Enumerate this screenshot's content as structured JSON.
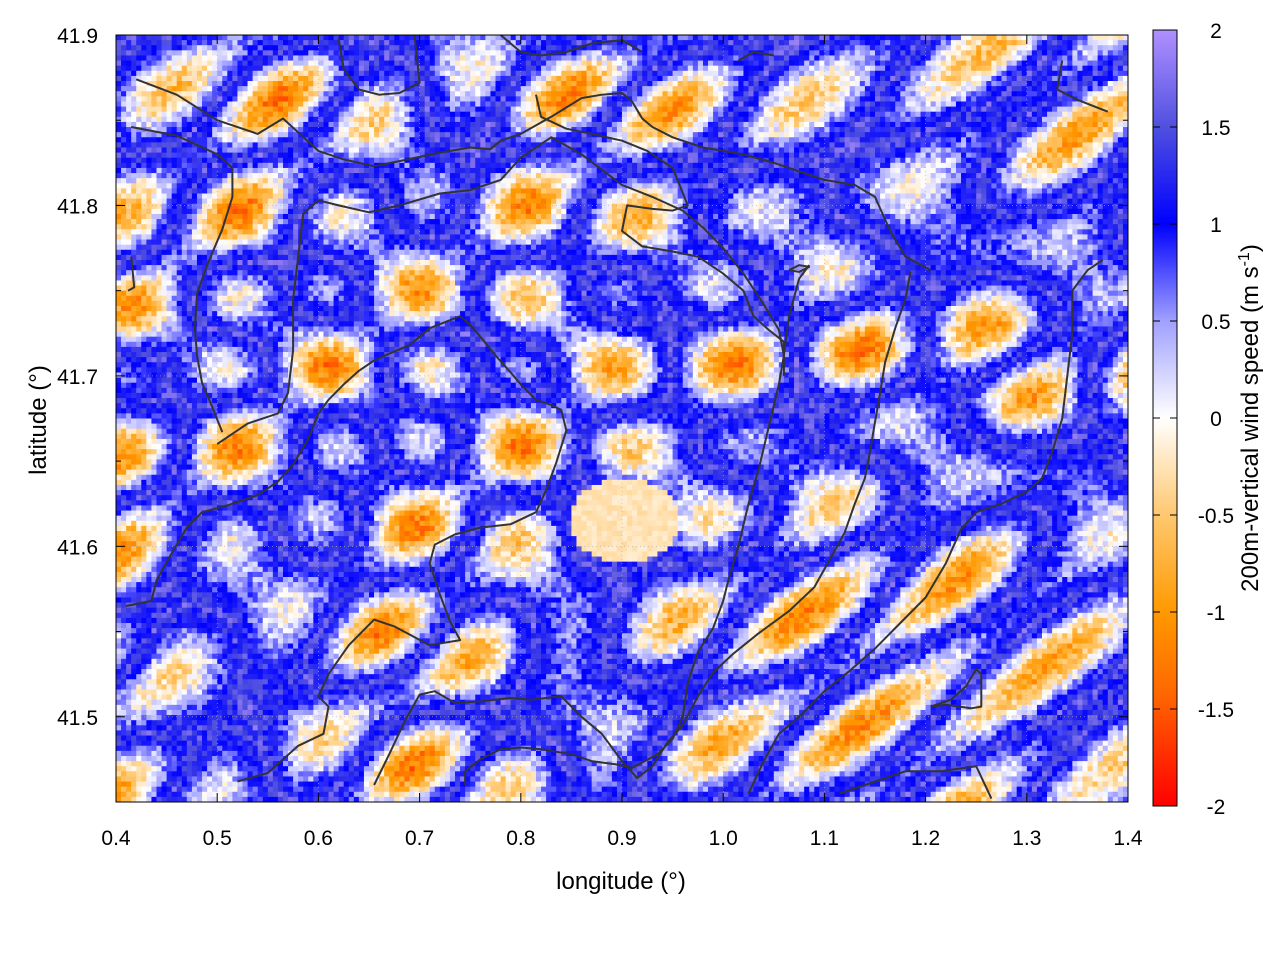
{
  "chart_data": {
    "type": "heatmap",
    "title": "",
    "xlabel": "longitude (°)",
    "ylabel": "latitude (°)",
    "colorbar_label": "200m-vertical wind speed (m s-1)",
    "colorbar_label_main": "200m-vertical wind speed (m s",
    "colorbar_label_sup": "-1",
    "colorbar_label_end": ")",
    "xlim": [
      0.4,
      1.4
    ],
    "ylim": [
      41.45,
      41.9
    ],
    "clim": [
      -2,
      2
    ],
    "x_ticks": [
      0.4,
      0.5,
      0.6,
      0.7,
      0.8,
      0.9,
      1.0,
      1.1,
      1.2,
      1.3,
      1.4
    ],
    "x_tick_labels": [
      "0.4",
      "0.5",
      "0.6",
      "0.7",
      "0.8",
      "0.9",
      "1.0",
      "1.1",
      "1.2",
      "1.3",
      "1.4"
    ],
    "y_ticks": [
      41.5,
      41.6,
      41.7,
      41.8,
      41.9
    ],
    "y_tick_labels": [
      "41.5",
      "41.6",
      "41.7",
      "41.8",
      "41.9"
    ],
    "c_ticks": [
      -2,
      -1.5,
      -1,
      -0.5,
      0,
      0.5,
      1,
      1.5,
      2
    ],
    "c_tick_labels": [
      "-2",
      "-1.5",
      "-1",
      "-0.5",
      "0",
      "0.5",
      "1",
      "1.5",
      "2"
    ],
    "colormap": [
      {
        "v": -2,
        "color": "#ff0000"
      },
      {
        "v": -1.4,
        "color": "#ff6a00"
      },
      {
        "v": -1,
        "color": "#ff9900"
      },
      {
        "v": -0.5,
        "color": "#ffc870"
      },
      {
        "v": 0,
        "color": "#ffffff"
      },
      {
        "v": 0.5,
        "color": "#a0a0ff"
      },
      {
        "v": 1,
        "color": "#0000ff"
      },
      {
        "v": 1.5,
        "color": "#5050e0"
      },
      {
        "v": 2,
        "color": "#b090ff"
      }
    ],
    "grid": true,
    "contour_color": "#333333",
    "contours": [
      [
        [
          0.42,
          41.874
        ],
        [
          0.46,
          41.865
        ],
        [
          0.5,
          41.85
        ],
        [
          0.54,
          41.842
        ],
        [
          0.565,
          41.851
        ],
        [
          0.6,
          41.832
        ],
        [
          0.625,
          41.827
        ],
        [
          0.655,
          41.823
        ],
        [
          0.68,
          41.826
        ],
        [
          0.72,
          41.831
        ],
        [
          0.75,
          41.834
        ],
        [
          0.77,
          41.833
        ],
        [
          0.78,
          41.838
        ],
        [
          0.8,
          41.842
        ],
        [
          0.83,
          41.852
        ],
        [
          0.86,
          41.863
        ],
        [
          0.88,
          41.865
        ],
        [
          0.9,
          41.866
        ],
        [
          0.91,
          41.861
        ],
        [
          0.92,
          41.851
        ],
        [
          0.93,
          41.846
        ],
        [
          0.95,
          41.84
        ],
        [
          0.98,
          41.834
        ],
        [
          1.02,
          41.83
        ],
        [
          1.05,
          41.825
        ],
        [
          1.07,
          41.821
        ],
        [
          1.1,
          41.815
        ],
        [
          1.13,
          41.812
        ],
        [
          1.15,
          41.805
        ],
        [
          1.165,
          41.785
        ],
        [
          1.18,
          41.77
        ],
        [
          1.205,
          41.762
        ]
      ],
      [
        [
          0.415,
          41.846
        ],
        [
          0.46,
          41.841
        ],
        [
          0.5,
          41.83
        ],
        [
          0.515,
          41.822
        ],
        [
          0.515,
          41.805
        ],
        [
          0.505,
          41.786
        ],
        [
          0.49,
          41.765
        ],
        [
          0.48,
          41.748
        ],
        [
          0.478,
          41.728
        ],
        [
          0.48,
          41.712
        ],
        [
          0.485,
          41.696
        ],
        [
          0.495,
          41.682
        ],
        [
          0.505,
          41.667
        ]
      ],
      [
        [
          0.5,
          41.66
        ],
        [
          0.53,
          41.672
        ],
        [
          0.56,
          41.678
        ],
        [
          0.57,
          41.69
        ],
        [
          0.575,
          41.715
        ],
        [
          0.575,
          41.745
        ],
        [
          0.58,
          41.77
        ],
        [
          0.585,
          41.795
        ],
        [
          0.6,
          41.803
        ],
        [
          0.62,
          41.8
        ],
        [
          0.65,
          41.796
        ],
        [
          0.68,
          41.8
        ],
        [
          0.72,
          41.807
        ],
        [
          0.75,
          41.809
        ],
        [
          0.78,
          41.815
        ],
        [
          0.8,
          41.828
        ],
        [
          0.83,
          41.84
        ],
        [
          0.86,
          41.83
        ],
        [
          0.9,
          41.812
        ],
        [
          0.93,
          41.805
        ],
        [
          0.96,
          41.797
        ],
        [
          0.98,
          41.787
        ],
        [
          1.0,
          41.775
        ],
        [
          1.02,
          41.76
        ],
        [
          1.04,
          41.742
        ],
        [
          1.055,
          41.727
        ],
        [
          1.06,
          41.712
        ]
      ],
      [
        [
          0.41,
          41.565
        ],
        [
          0.435,
          41.568
        ],
        [
          0.44,
          41.58
        ],
        [
          0.455,
          41.596
        ],
        [
          0.47,
          41.611
        ],
        [
          0.485,
          41.62
        ],
        [
          0.51,
          41.624
        ],
        [
          0.54,
          41.63
        ],
        [
          0.56,
          41.638
        ],
        [
          0.575,
          41.648
        ],
        [
          0.59,
          41.663
        ],
        [
          0.6,
          41.678
        ],
        [
          0.61,
          41.686
        ],
        [
          0.625,
          41.695
        ],
        [
          0.64,
          41.703
        ],
        [
          0.655,
          41.709
        ],
        [
          0.67,
          41.713
        ],
        [
          0.69,
          41.718
        ],
        [
          0.71,
          41.728
        ],
        [
          0.74,
          41.735
        ],
        [
          0.75,
          41.73
        ],
        [
          0.76,
          41.723
        ],
        [
          0.775,
          41.712
        ],
        [
          0.79,
          41.702
        ],
        [
          0.8,
          41.695
        ],
        [
          0.815,
          41.686
        ],
        [
          0.83,
          41.683
        ],
        [
          0.84,
          41.68
        ],
        [
          0.845,
          41.668
        ],
        [
          0.835,
          41.649
        ],
        [
          0.825,
          41.633
        ],
        [
          0.815,
          41.62
        ],
        [
          0.79,
          41.613
        ],
        [
          0.76,
          41.611
        ],
        [
          0.735,
          41.607
        ],
        [
          0.715,
          41.601
        ],
        [
          0.71,
          41.59
        ],
        [
          0.72,
          41.572
        ],
        [
          0.73,
          41.556
        ],
        [
          0.74,
          41.545
        ],
        [
          0.71,
          41.542
        ],
        [
          0.675,
          41.553
        ],
        [
          0.655,
          41.557
        ],
        [
          0.63,
          41.542
        ],
        [
          0.61,
          41.525
        ],
        [
          0.6,
          41.512
        ],
        [
          0.61,
          41.506
        ],
        [
          0.605,
          41.49
        ],
        [
          0.58,
          41.483
        ],
        [
          0.55,
          41.467
        ],
        [
          0.52,
          41.462
        ]
      ],
      [
        [
          0.655,
          41.46
        ],
        [
          0.67,
          41.478
        ],
        [
          0.685,
          41.497
        ],
        [
          0.7,
          41.513
        ],
        [
          0.715,
          41.515
        ],
        [
          0.735,
          41.508
        ],
        [
          0.76,
          41.509
        ],
        [
          0.79,
          41.511
        ],
        [
          0.81,
          41.51
        ],
        [
          0.84,
          41.512
        ],
        [
          0.85,
          41.506
        ],
        [
          0.86,
          41.5
        ],
        [
          0.88,
          41.49
        ],
        [
          0.9,
          41.474
        ],
        [
          0.915,
          41.464
        ],
        [
          0.93,
          41.471
        ],
        [
          0.945,
          41.485
        ],
        [
          0.96,
          41.495
        ],
        [
          0.975,
          41.512
        ],
        [
          0.99,
          41.526
        ],
        [
          1.01,
          41.537
        ],
        [
          1.035,
          41.549
        ],
        [
          1.065,
          41.562
        ],
        [
          1.09,
          41.576
        ],
        [
          1.105,
          41.592
        ],
        [
          1.12,
          41.608
        ],
        [
          1.13,
          41.625
        ],
        [
          1.14,
          41.64
        ],
        [
          1.145,
          41.655
        ],
        [
          1.15,
          41.673
        ],
        [
          1.155,
          41.69
        ],
        [
          1.16,
          41.708
        ],
        [
          1.17,
          41.728
        ],
        [
          1.18,
          41.745
        ],
        [
          1.185,
          41.761
        ]
      ],
      [
        [
          0.745,
          41.46
        ],
        [
          0.745,
          41.468
        ],
        [
          0.76,
          41.475
        ],
        [
          0.78,
          41.481
        ],
        [
          0.8,
          41.482
        ],
        [
          0.82,
          41.481
        ],
        [
          0.85,
          41.478
        ],
        [
          0.87,
          41.474
        ],
        [
          0.895,
          41.472
        ],
        [
          0.91,
          41.47
        ],
        [
          0.935,
          41.478
        ],
        [
          0.95,
          41.487
        ],
        [
          0.96,
          41.5
        ],
        [
          0.965,
          41.52
        ],
        [
          0.975,
          41.538
        ],
        [
          0.99,
          41.552
        ],
        [
          1.0,
          41.568
        ],
        [
          1.005,
          41.58
        ],
        [
          1.015,
          41.6
        ],
        [
          1.025,
          41.625
        ],
        [
          1.035,
          41.645
        ],
        [
          1.045,
          41.67
        ],
        [
          1.055,
          41.695
        ],
        [
          1.06,
          41.712
        ],
        [
          1.065,
          41.735
        ],
        [
          1.075,
          41.757
        ],
        [
          1.085,
          41.765
        ]
      ],
      [
        [
          1.025,
          41.455
        ],
        [
          1.04,
          41.474
        ],
        [
          1.055,
          41.49
        ],
        [
          1.075,
          41.5
        ],
        [
          1.1,
          41.515
        ],
        [
          1.125,
          41.527
        ],
        [
          1.15,
          41.54
        ],
        [
          1.175,
          41.555
        ],
        [
          1.2,
          41.57
        ],
        [
          1.22,
          41.59
        ],
        [
          1.235,
          41.61
        ],
        [
          1.25,
          41.62
        ],
        [
          1.275,
          41.625
        ],
        [
          1.3,
          41.632
        ],
        [
          1.315,
          41.64
        ],
        [
          1.325,
          41.655
        ],
        [
          1.335,
          41.675
        ],
        [
          1.34,
          41.7
        ],
        [
          1.345,
          41.725
        ],
        [
          1.345,
          41.75
        ],
        [
          1.36,
          41.762
        ],
        [
          1.375,
          41.768
        ]
      ],
      [
        [
          1.115,
          41.455
        ],
        [
          1.145,
          41.461
        ],
        [
          1.18,
          41.468
        ],
        [
          1.215,
          41.468
        ],
        [
          1.25,
          41.471
        ],
        [
          1.265,
          41.452
        ]
      ],
      [
        [
          1.205,
          41.506
        ],
        [
          1.22,
          41.507
        ],
        [
          1.245,
          41.505
        ],
        [
          1.255,
          41.506
        ],
        [
          1.255,
          41.525
        ],
        [
          1.25,
          41.528
        ],
        [
          1.24,
          41.518
        ],
        [
          1.225,
          41.51
        ],
        [
          1.205,
          41.506
        ]
      ],
      [
        [
          1.065,
          41.762
        ],
        [
          1.075,
          41.765
        ],
        [
          1.085,
          41.764
        ],
        [
          1.075,
          41.761
        ],
        [
          1.065,
          41.762
        ]
      ],
      [
        [
          0.815,
          41.865
        ],
        [
          0.82,
          41.852
        ],
        [
          0.845,
          41.845
        ],
        [
          0.87,
          41.842
        ],
        [
          0.9,
          41.838
        ],
        [
          0.925,
          41.832
        ],
        [
          0.95,
          41.822
        ],
        [
          0.965,
          41.8
        ],
        [
          0.95,
          41.797
        ],
        [
          0.93,
          41.798
        ],
        [
          0.905,
          41.8
        ],
        [
          0.9,
          41.785
        ],
        [
          0.92,
          41.776
        ],
        [
          0.95,
          41.773
        ],
        [
          0.975,
          41.77
        ],
        [
          1.0,
          41.76
        ],
        [
          1.02,
          41.75
        ],
        [
          1.03,
          41.735
        ],
        [
          1.045,
          41.727
        ],
        [
          1.06,
          41.72
        ],
        [
          1.06,
          41.7
        ]
      ],
      [
        [
          0.62,
          41.898
        ],
        [
          0.625,
          41.88
        ],
        [
          0.64,
          41.868
        ],
        [
          0.66,
          41.865
        ],
        [
          0.68,
          41.866
        ],
        [
          0.7,
          41.872
        ],
        [
          0.695,
          41.9
        ]
      ],
      [
        [
          0.78,
          41.9
        ],
        [
          0.8,
          41.89
        ],
        [
          0.82,
          41.888
        ],
        [
          0.845,
          41.89
        ],
        [
          0.87,
          41.895
        ],
        [
          0.9,
          41.897
        ],
        [
          0.92,
          41.89
        ]
      ],
      [
        [
          1.015,
          41.885
        ],
        [
          1.03,
          41.89
        ],
        [
          1.05,
          41.888
        ]
      ],
      [
        [
          1.335,
          41.885
        ],
        [
          1.33,
          41.868
        ],
        [
          1.35,
          41.862
        ],
        [
          1.38,
          41.855
        ]
      ],
      [
        [
          0.415,
          41.77
        ],
        [
          0.418,
          41.752
        ],
        [
          0.412,
          41.75
        ]
      ]
    ]
  }
}
